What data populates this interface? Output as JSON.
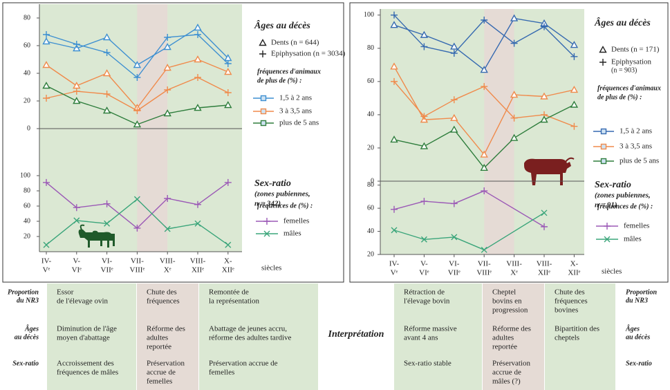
{
  "chart_data": [
    {
      "type": "line",
      "categories": [
        [
          "IV-",
          "Vᵉ"
        ],
        [
          "V-",
          "VIᵉ"
        ],
        [
          "VI-",
          "VIIᵉ"
        ],
        [
          "VII-",
          "VIIIᵉ"
        ],
        [
          "VIII-",
          "Xᵉ"
        ],
        [
          "VIII-",
          "XIIᵉ"
        ],
        [
          "X-",
          "XIIᵉ"
        ]
      ],
      "x_label": "siècles",
      "ages": {
        "title": "Âges au décès",
        "methods": [
          {
            "symbol": "triangle",
            "label": [
              "Dents (n = 644)"
            ]
          },
          {
            "symbol": "plus",
            "label": [
              "Epiphysation (n = 3034)"
            ]
          }
        ],
        "legend_heading": [
          "fréquences d'animaux",
          "de plus de (%) :"
        ],
        "ylim": [
          0,
          88
        ],
        "yticks": [
          0,
          20,
          40,
          60,
          80
        ],
        "series": [
          {
            "name": "1,5 à 2 ans",
            "color": "#3d8fd1",
            "values": [
              [
                63,
                58,
                66,
                46,
                59,
                73,
                51
              ],
              [
                68,
                61,
                55,
                37,
                66,
                68,
                47
              ]
            ]
          },
          {
            "name": "3 à 3,5 ans",
            "color": "#f08a4b",
            "values": [
              [
                46,
                31,
                40,
                15,
                44,
                50,
                41
              ],
              [
                22,
                27,
                25,
                13,
                28,
                37,
                26
              ]
            ]
          },
          {
            "name": "plus de 5 ans",
            "color": "#2e7d3c",
            "values": [
              [
                31,
                20,
                13,
                3,
                11,
                15,
                17
              ]
            ]
          }
        ]
      },
      "sex_ratio": {
        "title": "Sex-ratio",
        "subtitle": [
          "(zones pubiennes,",
          "n = 342)"
        ],
        "legend_heading": "fréquences de (%) :",
        "ylim": [
          0,
          110
        ],
        "yticks": [
          20,
          40,
          60,
          80,
          100
        ],
        "series": [
          {
            "name": "femelles",
            "color": "#9b59b6",
            "marker": "plus",
            "values": [
              91,
              58,
              63,
              31,
              70,
              62,
              91
            ]
          },
          {
            "name": "mâles",
            "color": "#3aa57a",
            "marker": "cross",
            "values": [
              9,
              41,
              37,
              69,
              30,
              37,
              9
            ]
          }
        ]
      }
    },
    {
      "type": "line",
      "categories": [
        [
          "IV-",
          "Vᵉ"
        ],
        [
          "V-",
          "VIᵉ"
        ],
        [
          "VI-",
          "VIIᵉ"
        ],
        [
          "VII-",
          "VIIIᵉ"
        ],
        [
          "VIII-",
          "Xᵉ"
        ],
        [
          "VIII-",
          "XIIᵉ"
        ],
        [
          "X-",
          "XIIᵉ"
        ]
      ],
      "x_label": "siècles",
      "ages": {
        "title": "Âges au décès",
        "methods": [
          {
            "symbol": "triangle",
            "label": [
              "Dents (n = 171)"
            ]
          },
          {
            "symbol": "plus",
            "label": [
              "Epiphysation",
              "(n = 903)"
            ]
          }
        ],
        "legend_heading": [
          "fréquences d'animaux",
          "de plus de (%) :"
        ],
        "ylim": [
          0,
          102
        ],
        "yticks": [
          0,
          20,
          40,
          60,
          80,
          100
        ],
        "series": [
          {
            "name": "1,5 à 2 ans",
            "color": "#3569b0",
            "values": [
              [
                94,
                88,
                81,
                67,
                98,
                95,
                82
              ],
              [
                100,
                81,
                77,
                97,
                83,
                93,
                75
              ]
            ]
          },
          {
            "name": "3 à 3,5 ans",
            "color": "#f08a4b",
            "values": [
              [
                69,
                37,
                38,
                16,
                52,
                51,
                55
              ],
              [
                60,
                39,
                49,
                57,
                38,
                40,
                33
              ]
            ]
          },
          {
            "name": "plus de 5 ans",
            "color": "#2e7d3c",
            "values": [
              [
                25,
                21,
                31,
                8,
                26,
                37,
                46
              ]
            ]
          }
        ]
      },
      "sex_ratio": {
        "title": "Sex-ratio",
        "subtitle": [
          "(zones pubiennes,",
          "n = 91)"
        ],
        "legend_heading": "fréquences de (%) :",
        "ylim": [
          20,
          84
        ],
        "yticks": [
          20,
          40,
          60,
          80
        ],
        "series": [
          {
            "name": "femelles",
            "color": "#9b59b6",
            "marker": "plus",
            "values": [
              59,
              66,
              64,
              75,
              null,
              44,
              null
            ]
          },
          {
            "name": "mâles",
            "color": "#3aa57a",
            "marker": "cross",
            "values": [
              41,
              33,
              35,
              24,
              null,
              56,
              null
            ]
          }
        ]
      }
    }
  ],
  "interpretation": {
    "title": "Interprétation",
    "row_labels": [
      [
        "Proportion",
        "du NR3"
      ],
      [
        "Âges",
        "au décès"
      ],
      [
        "Sex-ratio"
      ]
    ],
    "left_columns": [
      [
        [
          "Essor",
          "de l'élevage ovin"
        ],
        [
          "Diminution de l'âge",
          "moyen d'abattage"
        ],
        [
          "Accroissement des",
          "fréquences de mâles"
        ]
      ],
      [
        [
          "Chute des",
          "fréquences"
        ],
        [
          "Réforme des",
          "adultes",
          "reportée"
        ],
        [
          "Préservation",
          "accrue de",
          "femelles"
        ]
      ],
      [
        [
          "Remontée de",
          "la représentation"
        ],
        [
          "Abattage de jeunes accru,",
          "réforme des adultes tardive"
        ],
        [
          "Préservation accrue de",
          "femelles"
        ]
      ]
    ],
    "right_columns": [
      [
        [
          "Rétraction de",
          "l'élevage bovin"
        ],
        [
          "Réforme massive",
          "avant 4 ans"
        ],
        [
          "Sex-ratio stable"
        ]
      ],
      [
        [
          "Cheptel",
          "bovins en",
          "progression"
        ],
        [
          "Réforme des",
          "adultes",
          "reportée"
        ],
        [
          "Préservation",
          "accrue de",
          "mâles (?)"
        ]
      ],
      [
        [
          "Chute des",
          "fréquences",
          "bovines"
        ],
        [
          "Bipartition des",
          "cheptels"
        ],
        null
      ]
    ]
  }
}
